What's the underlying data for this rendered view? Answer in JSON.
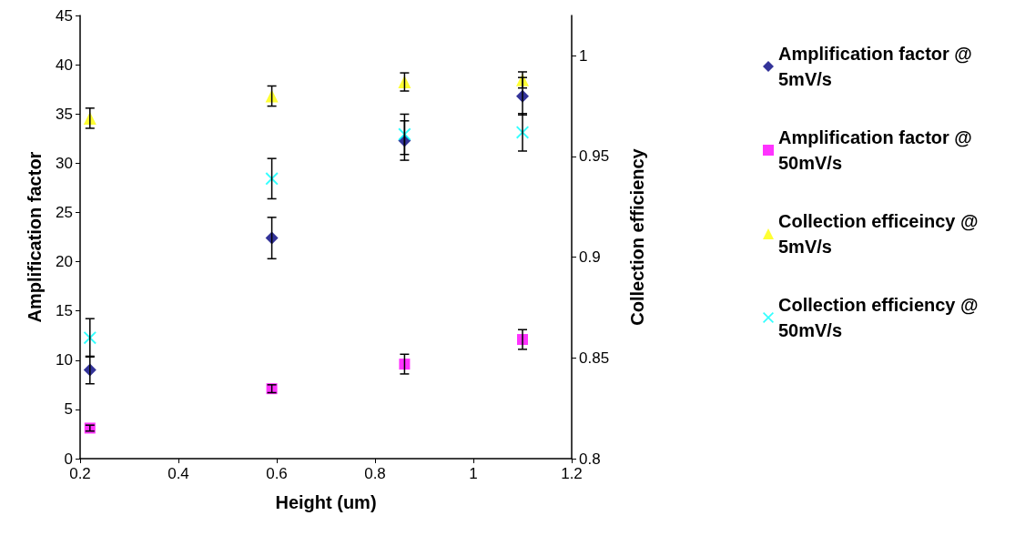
{
  "chart_data": {
    "type": "scatter",
    "xlabel": "Height (um)",
    "ylabel": "Amplification factor",
    "y2label": "Collection efficiency",
    "xlim": [
      0.2,
      1.2
    ],
    "xticks": [
      0.2,
      0.4,
      0.6,
      0.8,
      1,
      1.2
    ],
    "ylim": [
      0,
      45
    ],
    "yticks": [
      0,
      5,
      10,
      15,
      20,
      25,
      30,
      35,
      40,
      45
    ],
    "y2lim": [
      0.8,
      1.02
    ],
    "y2ticks": [
      0.8,
      0.85,
      0.9,
      0.95,
      1
    ],
    "grid": false,
    "legend": "right",
    "series": [
      {
        "name": "Amplification factor @ 5mV/s",
        "color": "#000080",
        "marker": "diamond",
        "x": [
          0.22,
          0.59,
          0.86,
          1.1
        ],
        "values": [
          9.0,
          22.4,
          32.3,
          36.8
        ],
        "errors": [
          1.4,
          2.1,
          2.0,
          1.9
        ]
      },
      {
        "name": "Amplification factor @ 50mV/s",
        "color": "#ff00ff",
        "marker": "square",
        "x": [
          0.22,
          0.59,
          0.86,
          1.1
        ],
        "values": [
          3.1,
          7.1,
          9.6,
          12.1
        ],
        "errors": [
          0.3,
          0.4,
          1.0,
          1.0
        ]
      },
      {
        "name": "Collection efficeincy @ 5mV/s",
        "color": "#ffff00",
        "marker": "triangle",
        "axis": "y2",
        "x": [
          0.22,
          0.59,
          0.86,
          1.1
        ],
        "values": [
          0.969,
          0.98,
          0.987,
          0.988
        ],
        "errors": [
          0.005,
          0.005,
          0.0045,
          0.004
        ]
      },
      {
        "name": "Collection efficiency @ 50mV/s",
        "color": "#00ffff",
        "marker": "cross",
        "axis": "y2",
        "x": [
          0.22,
          0.59,
          0.86,
          1.1
        ],
        "values": [
          0.86,
          0.939,
          0.961,
          0.962
        ],
        "errors": [
          0.0095,
          0.01,
          0.01,
          0.0093
        ]
      }
    ]
  }
}
